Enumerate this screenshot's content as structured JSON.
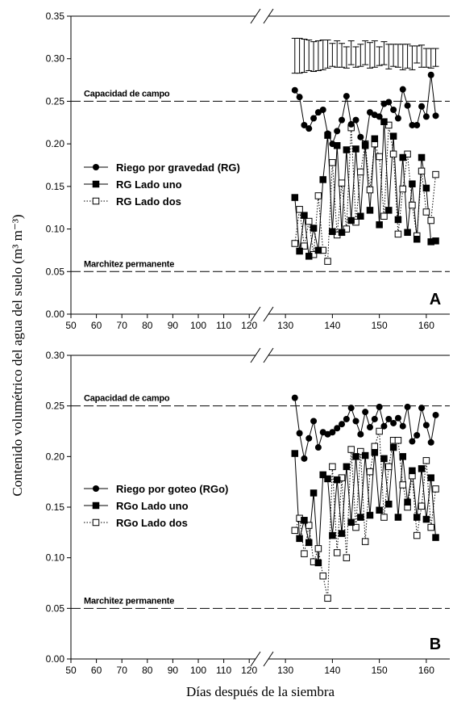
{
  "chart_data": {
    "type": "scatter",
    "ylabel": "Contenido volumétrico del agua del suelo (m³ m⁻³)",
    "xlabel": "Días después de la siembra",
    "x_ticks_left": [
      50,
      60,
      70,
      80,
      90,
      100,
      110,
      120
    ],
    "x_ticks_right": [
      130,
      140,
      150,
      160
    ],
    "x_left_range": [
      50,
      125
    ],
    "x_right_range": [
      125,
      165
    ],
    "panels": [
      {
        "letter": "A",
        "ylim": [
          0,
          0.35
        ],
        "y_ticks": [
          "0.00",
          "0.05",
          "0.10",
          "0.15",
          "0.20",
          "0.25",
          "0.30",
          "0.35"
        ],
        "ref_lines": [
          {
            "label": "Capacidad de campo",
            "y": 0.25
          },
          {
            "label": "Marchitez permanente",
            "y": 0.05
          }
        ],
        "error_bars": {
          "x": [
            132,
            133,
            134,
            135,
            136,
            137,
            138,
            139,
            140,
            141,
            142,
            143,
            144,
            145,
            146,
            147,
            148,
            149,
            150,
            151,
            152,
            153,
            154,
            155,
            156,
            157,
            158,
            159,
            160,
            161,
            162
          ],
          "low": [
            0.283,
            0.283,
            0.284,
            0.286,
            0.285,
            0.286,
            0.287,
            0.289,
            0.291,
            0.29,
            0.29,
            0.289,
            0.293,
            0.29,
            0.291,
            0.293,
            0.289,
            0.29,
            0.292,
            0.293,
            0.288,
            0.291,
            0.29,
            0.287,
            0.289,
            0.287,
            0.295,
            0.29,
            0.29,
            0.289,
            0.291
          ],
          "high": [
            0.324,
            0.324,
            0.323,
            0.322,
            0.32,
            0.321,
            0.322,
            0.322,
            0.318,
            0.321,
            0.318,
            0.314,
            0.321,
            0.314,
            0.317,
            0.321,
            0.319,
            0.321,
            0.314,
            0.32,
            0.317,
            0.317,
            0.317,
            0.317,
            0.317,
            0.315,
            0.315,
            0.316,
            0.312,
            0.312,
            0.312
          ]
        },
        "series": [
          {
            "name": "Riego por gravedad (RG)",
            "marker": "filled-circle",
            "line": "solid",
            "x": [
              132,
              133,
              134,
              135,
              136,
              137,
              138,
              139,
              140,
              141,
              142,
              143,
              144,
              145,
              146,
              147,
              148,
              149,
              150,
              151,
              152,
              153,
              154,
              155,
              156,
              157,
              158,
              159,
              160,
              161,
              162
            ],
            "values": [
              0.263,
              0.255,
              0.222,
              0.218,
              0.23,
              0.237,
              0.24,
              0.212,
              0.2,
              0.215,
              0.228,
              0.256,
              0.223,
              0.228,
              0.208,
              0.2,
              0.237,
              0.234,
              0.232,
              0.247,
              0.249,
              0.24,
              0.23,
              0.264,
              0.245,
              0.222,
              0.222,
              0.244,
              0.232,
              0.281,
              0.233
            ]
          },
          {
            "name": "RG Lado uno",
            "marker": "filled-square",
            "line": "solid",
            "x": [
              132,
              133,
              134,
              135,
              136,
              137,
              138,
              139,
              140,
              141,
              142,
              143,
              144,
              145,
              146,
              147,
              148,
              149,
              150,
              151,
              152,
              153,
              154,
              155,
              156,
              157,
              158,
              159,
              160,
              161,
              162
            ],
            "values": [
              0.137,
              0.074,
              0.116,
              0.068,
              0.101,
              0.075,
              0.158,
              0.21,
              0.097,
              0.198,
              0.096,
              0.193,
              0.11,
              0.194,
              0.115,
              0.198,
              0.122,
              0.206,
              0.105,
              0.226,
              0.122,
              0.209,
              0.111,
              0.184,
              0.096,
              0.153,
              0.088,
              0.184,
              0.148,
              0.085,
              0.086
            ]
          },
          {
            "name": "RG Lado dos",
            "marker": "open-square",
            "line": "dotted",
            "x": [
              132,
              133,
              134,
              135,
              136,
              137,
              138,
              139,
              140,
              141,
              142,
              143,
              144,
              145,
              146,
              147,
              148,
              149,
              150,
              151,
              152,
              153,
              154,
              155,
              156,
              157,
              158,
              159,
              160,
              161,
              162
            ],
            "values": [
              0.083,
              0.123,
              0.08,
              0.109,
              0.07,
              0.139,
              0.075,
              0.062,
              0.178,
              0.093,
              0.154,
              0.1,
              0.219,
              0.108,
              0.167,
              0.2,
              0.146,
              0.2,
              0.185,
              0.115,
              0.222,
              0.188,
              0.094,
              0.147,
              0.188,
              0.128,
              0.092,
              0.168,
              0.12,
              0.11,
              0.164
            ]
          }
        ],
        "legend": [
          "Riego por gravedad (RG)",
          "RG Lado uno",
          "RG Lado dos"
        ]
      },
      {
        "letter": "B",
        "ylim": [
          0,
          0.3
        ],
        "y_ticks": [
          "0.00",
          "0.05",
          "0.10",
          "0.15",
          "0.20",
          "0.25",
          "0.30"
        ],
        "ref_lines": [
          {
            "label": "Capacidad de campo",
            "y": 0.25
          },
          {
            "label": "Marchitez permanente",
            "y": 0.05
          }
        ],
        "series": [
          {
            "name": "Riego por goteo (RGo)",
            "marker": "filled-circle",
            "line": "solid",
            "x": [
              132,
              133,
              134,
              135,
              136,
              137,
              138,
              139,
              140,
              141,
              142,
              143,
              144,
              145,
              146,
              147,
              148,
              149,
              150,
              151,
              152,
              153,
              154,
              155,
              156,
              157,
              158,
              159,
              160,
              161,
              162
            ],
            "values": [
              0.258,
              0.223,
              0.198,
              0.218,
              0.235,
              0.209,
              0.224,
              0.222,
              0.224,
              0.228,
              0.232,
              0.237,
              0.248,
              0.235,
              0.222,
              0.244,
              0.229,
              0.237,
              0.249,
              0.23,
              0.237,
              0.233,
              0.238,
              0.23,
              0.249,
              0.215,
              0.221,
              0.248,
              0.231,
              0.214,
              0.241
            ]
          },
          {
            "name": "RGo Lado uno",
            "marker": "filled-square",
            "line": "solid",
            "x": [
              132,
              133,
              134,
              135,
              136,
              137,
              138,
              139,
              140,
              141,
              142,
              143,
              144,
              145,
              146,
              147,
              148,
              149,
              150,
              151,
              152,
              153,
              154,
              155,
              156,
              157,
              158,
              159,
              160,
              161,
              162
            ],
            "values": [
              0.203,
              0.119,
              0.137,
              0.115,
              0.164,
              0.095,
              0.182,
              0.178,
              0.122,
              0.177,
              0.124,
              0.19,
              0.135,
              0.2,
              0.14,
              0.201,
              0.142,
              0.204,
              0.147,
              0.198,
              0.153,
              0.209,
              0.14,
              0.2,
              0.155,
              0.186,
              0.14,
              0.188,
              0.138,
              0.179,
              0.12
            ]
          },
          {
            "name": "RGo Lado dos",
            "marker": "open-square",
            "line": "dotted",
            "x": [
              132,
              133,
              134,
              135,
              136,
              137,
              138,
              139,
              140,
              141,
              142,
              143,
              144,
              145,
              146,
              147,
              148,
              149,
              150,
              151,
              152,
              153,
              154,
              155,
              156,
              157,
              158,
              159,
              160,
              161,
              162
            ],
            "values": [
              0.127,
              0.139,
              0.104,
              0.132,
              0.096,
              0.109,
              0.082,
              0.06,
              0.19,
              0.105,
              0.179,
              0.1,
              0.207,
              0.13,
              0.205,
              0.116,
              0.185,
              0.21,
              0.225,
              0.14,
              0.19,
              0.216,
              0.216,
              0.172,
              0.15,
              0.181,
              0.122,
              0.151,
              0.196,
              0.13,
              0.168
            ]
          }
        ],
        "legend": [
          "Riego por goteo (RGo)",
          "RGo Lado uno",
          "RGo Lado dos"
        ]
      }
    ]
  }
}
